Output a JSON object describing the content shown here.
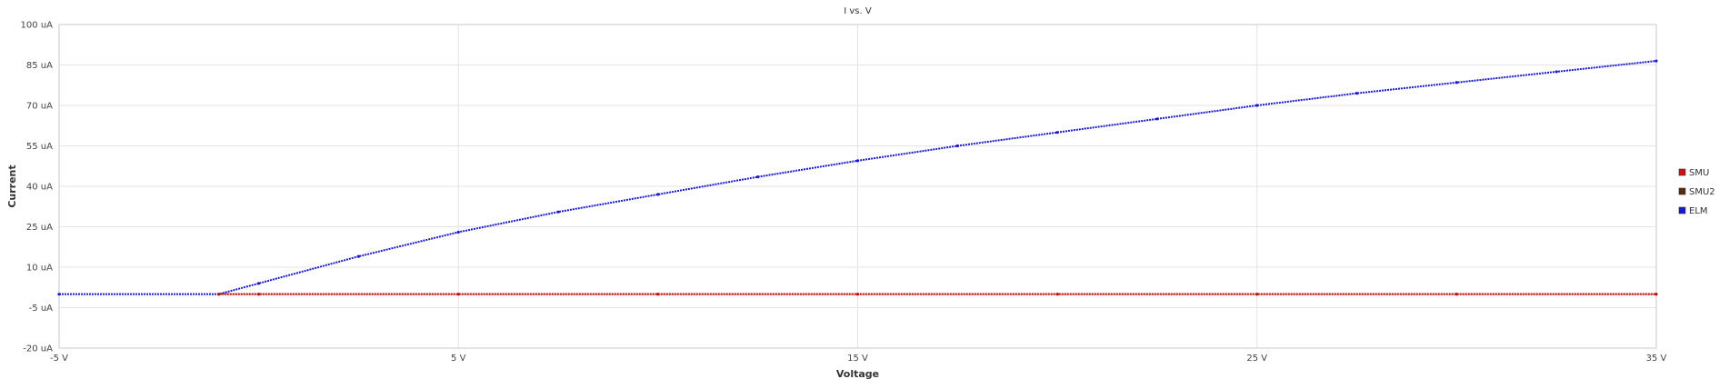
{
  "chart_data": {
    "type": "line",
    "title": "I vs. V",
    "xlabel": "Voltage",
    "ylabel": "Current",
    "xlim": [
      -5,
      35
    ],
    "ylim": [
      -20,
      100
    ],
    "x_ticks": [
      "-5 V",
      "5 V",
      "15 V",
      "25 V",
      "35 V"
    ],
    "x_tick_values": [
      -5,
      5,
      15,
      25,
      35
    ],
    "y_ticks": [
      "100 uA",
      "85 uA",
      "70 uA",
      "55 uA",
      "40 uA",
      "25 uA",
      "10 uA",
      "-5 uA",
      "-20 uA"
    ],
    "y_tick_values": [
      100,
      85,
      70,
      55,
      40,
      25,
      10,
      -5,
      -20
    ],
    "grid": true,
    "legend_position": "right",
    "series": [
      {
        "name": "SMU",
        "color": "#cc1111",
        "x": [
          -5,
          -1,
          0,
          5,
          10,
          15,
          20,
          25,
          30,
          35
        ],
        "y": [
          0,
          0,
          0,
          0,
          0,
          0,
          0,
          0,
          0,
          0
        ]
      },
      {
        "name": "SMU2",
        "color": "#5a2a12",
        "x": [
          -5,
          -1,
          0,
          5,
          10,
          15,
          20,
          25,
          30,
          35
        ],
        "y": [
          0,
          0,
          0,
          0,
          0,
          0,
          0,
          0,
          0,
          0
        ]
      },
      {
        "name": "ELM",
        "color": "#1a1acc",
        "x": [
          -5,
          -1,
          0,
          2.5,
          5,
          7.5,
          10,
          12.5,
          15,
          17.5,
          20,
          22.5,
          25,
          27.5,
          30,
          32.5,
          35
        ],
        "y": [
          0,
          0,
          4,
          14,
          23,
          30.5,
          37,
          43.5,
          49.5,
          55,
          60,
          65,
          70,
          74.5,
          78.5,
          82.5,
          86.5
        ]
      }
    ]
  }
}
